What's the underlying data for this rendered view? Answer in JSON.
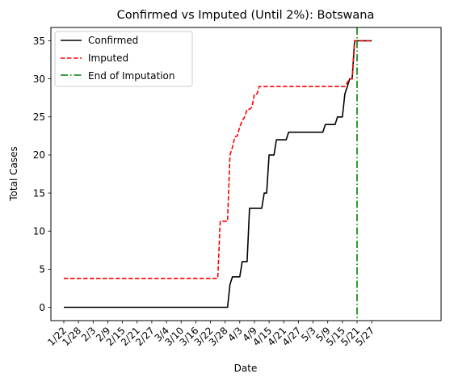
{
  "chart_data": {
    "type": "line",
    "title": "Confirmed vs Imputed (Until 2%): Botswana",
    "xlabel": "Date",
    "ylabel": "Total Cases",
    "x_tick_labels": [
      "1/22",
      "1/28",
      "2/3",
      "2/9",
      "2/15",
      "2/21",
      "2/27",
      "3/4",
      "3/10",
      "3/16",
      "3/22",
      "3/28",
      "4/3",
      "4/9",
      "4/15",
      "4/21",
      "4/27",
      "5/3",
      "5/9",
      "5/15",
      "5/21",
      "5/27"
    ],
    "x_tick_days": [
      0,
      6,
      12,
      18,
      24,
      30,
      36,
      42,
      48,
      54,
      60,
      66,
      72,
      78,
      84,
      90,
      96,
      102,
      108,
      114,
      120,
      126
    ],
    "x_range_days": [
      0,
      131
    ],
    "ylim": [
      -1.75,
      36.75
    ],
    "y_ticks": [
      0,
      5,
      10,
      15,
      20,
      25,
      30,
      35
    ],
    "grid": false,
    "legend_position": "top-left",
    "end_of_imputation_day": 120,
    "series": [
      {
        "name": "Confirmed",
        "color": "#000000",
        "style": "solid",
        "points": [
          [
            0,
            0
          ],
          [
            67,
            0
          ],
          [
            68,
            3
          ],
          [
            69,
            4
          ],
          [
            72,
            4
          ],
          [
            73,
            6
          ],
          [
            75,
            6
          ],
          [
            76,
            13
          ],
          [
            81,
            13
          ],
          [
            82,
            15
          ],
          [
            83,
            15
          ],
          [
            84,
            20
          ],
          [
            86,
            20
          ],
          [
            87,
            22
          ],
          [
            91,
            22
          ],
          [
            92,
            23
          ],
          [
            106,
            23
          ],
          [
            107,
            24
          ],
          [
            111,
            24
          ],
          [
            112,
            25
          ],
          [
            114,
            25
          ],
          [
            115,
            28
          ],
          [
            116,
            29
          ],
          [
            117,
            30
          ],
          [
            118,
            30
          ],
          [
            119,
            35
          ],
          [
            126,
            35
          ]
        ]
      },
      {
        "name": "Imputed",
        "color": "#ff0000",
        "style": "dashed",
        "points": [
          [
            0,
            3.8
          ],
          [
            63,
            3.8
          ],
          [
            64,
            11.3
          ],
          [
            67,
            11.3
          ],
          [
            68,
            20
          ],
          [
            69,
            21
          ],
          [
            70,
            22.4
          ],
          [
            71,
            22.5
          ],
          [
            72,
            23.7
          ],
          [
            73,
            24.5
          ],
          [
            74,
            25
          ],
          [
            75,
            26
          ],
          [
            76,
            26
          ],
          [
            77,
            26.3
          ],
          [
            78,
            28
          ],
          [
            79,
            28
          ],
          [
            80,
            29
          ],
          [
            84,
            29
          ],
          [
            114,
            29
          ],
          [
            115,
            29
          ],
          [
            117,
            30
          ],
          [
            118,
            30
          ],
          [
            119,
            35
          ],
          [
            126,
            35
          ]
        ]
      }
    ],
    "reference_line": {
      "name": "End of Imputation",
      "color": "#008000",
      "style": "dashdot"
    }
  }
}
